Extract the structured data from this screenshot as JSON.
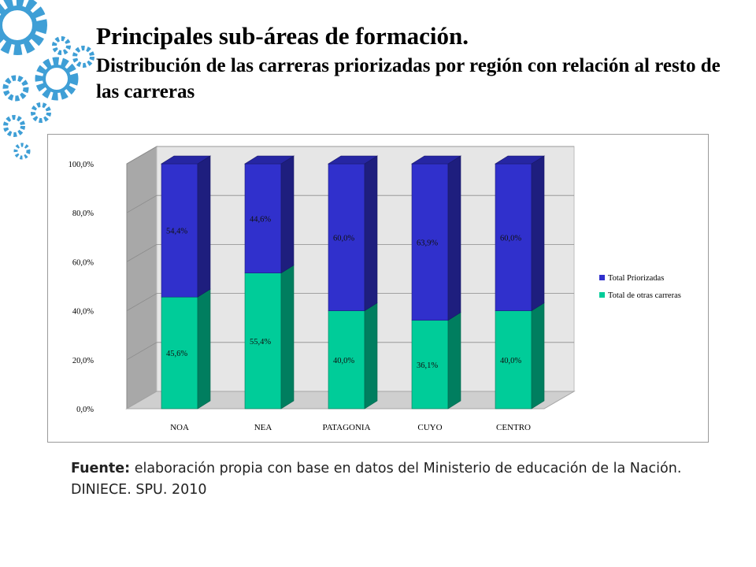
{
  "page": {
    "title": "Principales sub-áreas de formación.",
    "subtitle": "Distribución de las carreras priorizadas por región con relación al resto de las carreras",
    "source_label": "Fuente:",
    "source_text": "elaboración propia con base en datos del Ministerio de educación de la Nación. DINIECE. SPU. 2010"
  },
  "colors": {
    "priorizadas": "#3030cc",
    "otras": "#00cc99",
    "gear": "#3f9fd6"
  },
  "chart_data": {
    "type": "bar",
    "stacked": true,
    "percent": true,
    "title": "",
    "xlabel": "",
    "ylabel": "",
    "ylim": [
      0,
      100
    ],
    "yticks": [
      "0,0%",
      "20,0%",
      "40,0%",
      "60,0%",
      "80,0%",
      "100,0%"
    ],
    "categories": [
      "NOA",
      "NEA",
      "PATAGONIA",
      "CUYO",
      "CENTRO"
    ],
    "series": [
      {
        "name": "Total de otras carreras",
        "values": [
          45.6,
          55.4,
          40.0,
          36.1,
          40.0
        ],
        "labels": [
          "45,6%",
          "55,4%",
          "40,0%",
          "36,1%",
          "40,0%"
        ]
      },
      {
        "name": "Total Priorizadas",
        "values": [
          54.4,
          44.6,
          60.0,
          63.9,
          60.0
        ],
        "labels": [
          "54,4%",
          "44,6%",
          "60,0%",
          "63,9%",
          "60,0%"
        ]
      }
    ],
    "legend": [
      "Total Priorizadas",
      "Total de otras carreras"
    ],
    "legend_position": "right",
    "grid": true,
    "three_d": true
  }
}
